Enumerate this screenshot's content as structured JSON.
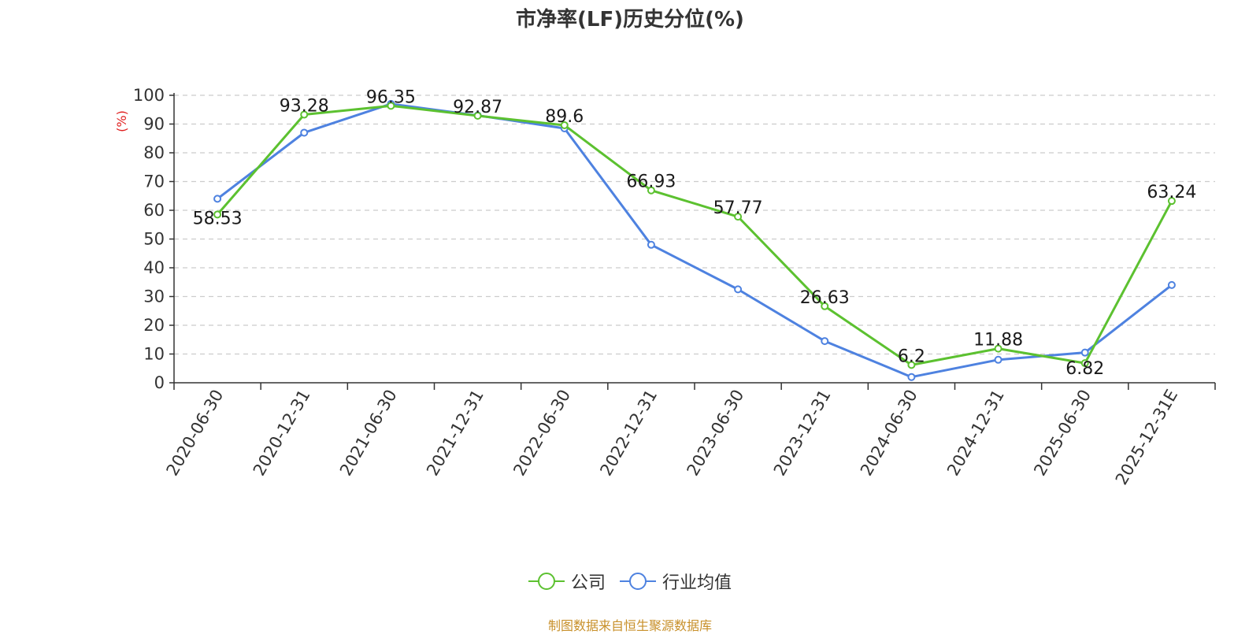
{
  "chart_data": {
    "type": "line",
    "title": "市净率(LF)历史分位(%)",
    "ylabel": "(%)",
    "xlabel": "",
    "ylim": [
      0,
      100
    ],
    "yticks": [
      0,
      10,
      20,
      30,
      40,
      50,
      60,
      70,
      80,
      90,
      100
    ],
    "categories": [
      "2020-06-30",
      "2020-12-31",
      "2021-06-30",
      "2021-12-31",
      "2022-06-30",
      "2022-12-31",
      "2023-06-30",
      "2023-12-31",
      "2024-06-30",
      "2024-12-31",
      "2025-06-30",
      "2025-12-31E"
    ],
    "series": [
      {
        "name": "公司",
        "color": "#5cc130",
        "values": [
          58.53,
          93.28,
          96.35,
          92.87,
          89.6,
          66.93,
          57.77,
          26.63,
          6.2,
          11.88,
          6.82,
          63.24
        ],
        "labels": [
          "58.53",
          "93.28",
          "96.35",
          "92.87",
          "89.6",
          "66.93",
          "57.77",
          "26.63",
          "6.2",
          "11.88",
          "6.82",
          "63.24"
        ]
      },
      {
        "name": "行业均值",
        "color": "#4e82e0",
        "values": [
          64,
          87,
          97,
          93,
          88.5,
          48,
          32.5,
          14.5,
          2,
          8,
          10.5,
          34
        ]
      }
    ],
    "grid": true,
    "legend_position": "bottom-center"
  },
  "footer": {
    "source": "制图数据来自恒生聚源数据库"
  }
}
